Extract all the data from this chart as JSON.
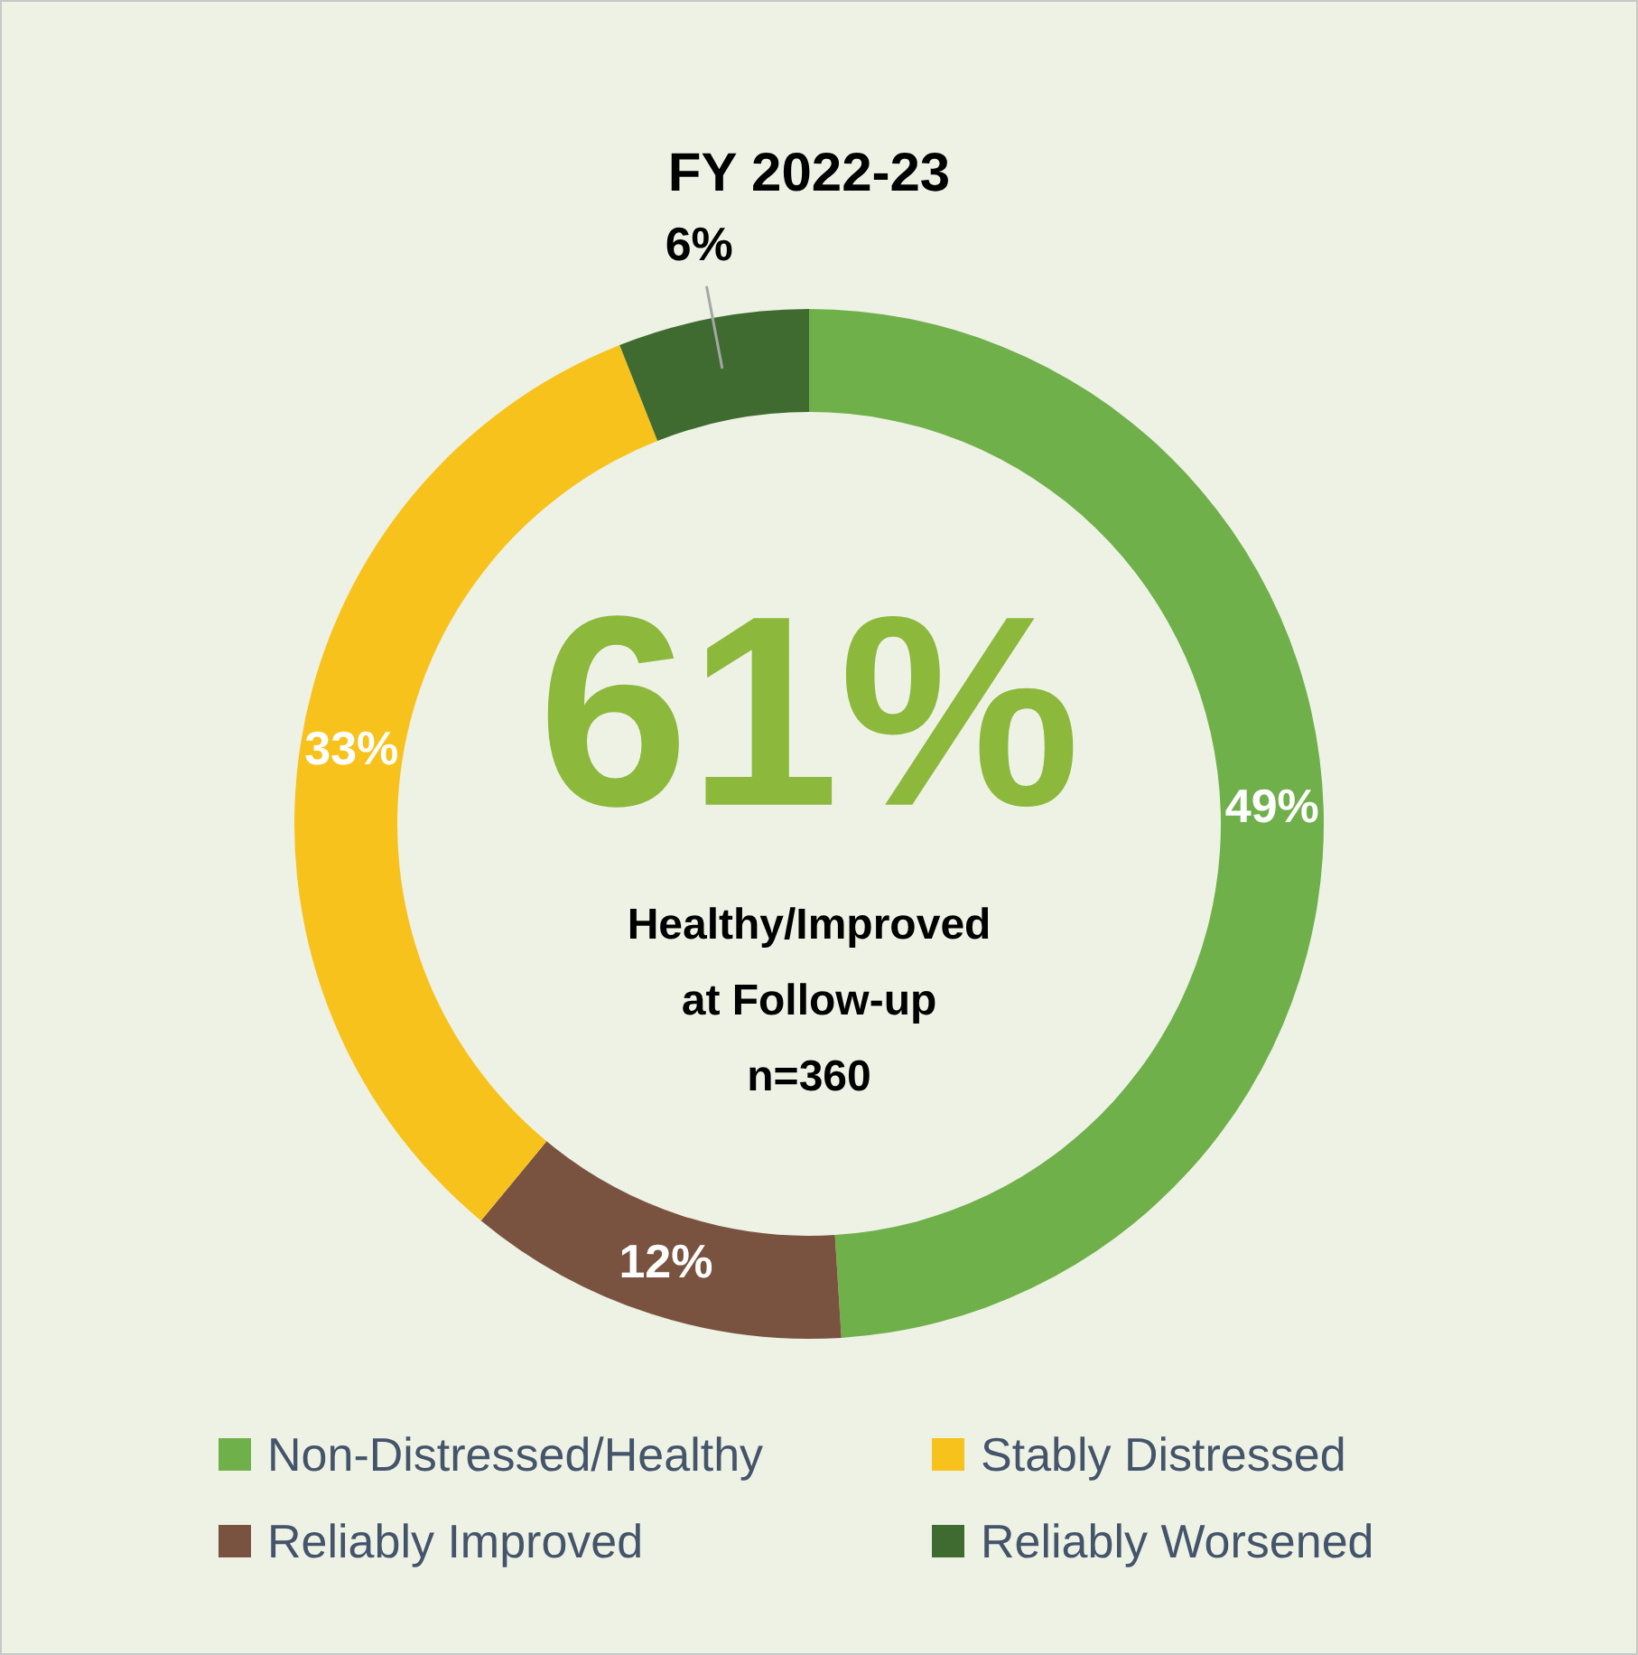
{
  "chart_data": {
    "type": "donut",
    "title": "FY 2022-23",
    "categories": [
      "Non-Distressed/Healthy",
      "Reliably Improved",
      "Stably Distressed",
      "Reliably Worsened"
    ],
    "values": [
      49,
      12,
      33,
      6
    ],
    "colors": [
      "#6fb04a",
      "#7a5340",
      "#f8c21c",
      "#3f6b30"
    ],
    "value_labels": [
      "49%",
      "12%",
      "33%",
      "6%"
    ],
    "legend": "bottom",
    "annotations": [
      "61%",
      "Healthy/Improved",
      "at Follow-up",
      "n=360"
    ]
  }
}
